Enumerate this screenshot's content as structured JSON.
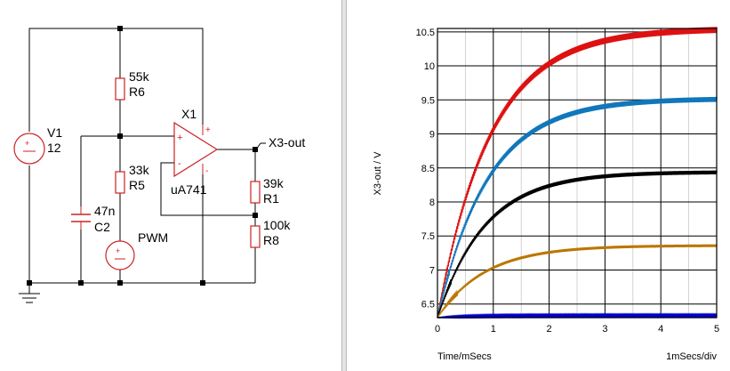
{
  "schematic": {
    "components": {
      "v1": {
        "name": "V1",
        "value": "12"
      },
      "r6": {
        "name": "R6",
        "value": "55k"
      },
      "r5": {
        "name": "R5",
        "value": "33k"
      },
      "c2": {
        "name": "C2",
        "value": "47n"
      },
      "pwm": {
        "name": "PWM"
      },
      "x1": {
        "name": "X1",
        "model": "uA741"
      },
      "r1": {
        "name": "R1",
        "value": "39k"
      },
      "r8": {
        "name": "R8",
        "value": "100k"
      },
      "probe": {
        "name": "X3-out"
      }
    },
    "colors": {
      "wire": "#000000",
      "component": "#cc2222",
      "junction": "#000000"
    }
  },
  "chart_data": {
    "type": "line",
    "xlabel": "Time/mSecs",
    "ylabel": "X3-out / V",
    "x_ticks": [
      "0",
      "1",
      "2",
      "3",
      "4",
      "5"
    ],
    "y_ticks": [
      "6.5",
      "7",
      "7.5",
      "8",
      "8.5",
      "9",
      "9.5",
      "10",
      "10.5"
    ],
    "xlim": [
      0,
      5
    ],
    "ylim": [
      6.3,
      10.55
    ],
    "grid": true,
    "scale_note": "1mSecs/div",
    "series": [
      {
        "color": "#dd1111",
        "start": 6.3,
        "final": 10.55,
        "tau": 0.95
      },
      {
        "color": "#1177bb",
        "start": 6.3,
        "final": 9.52,
        "tau": 0.9
      },
      {
        "color": "#000000",
        "start": 6.3,
        "final": 8.44,
        "tau": 0.85
      },
      {
        "color": "#bb7700",
        "start": 6.3,
        "final": 7.36,
        "tau": 0.85
      },
      {
        "color": "#0000cc",
        "start": 6.3,
        "final": 6.33,
        "tau": 0.6
      }
    ]
  }
}
